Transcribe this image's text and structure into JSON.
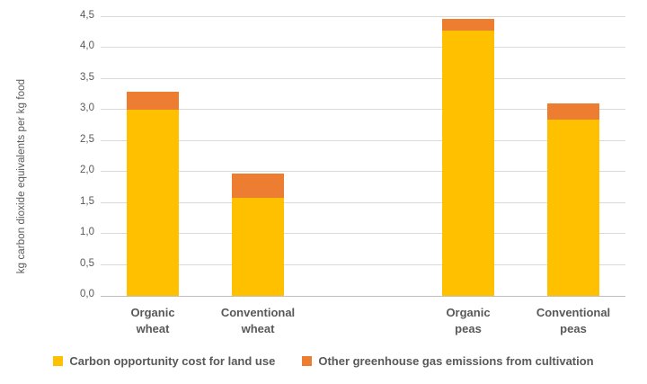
{
  "chart_data": {
    "type": "bar",
    "stacked": true,
    "title": "",
    "xlabel": "",
    "ylabel": "kg carbon dioxide equivalents per kg food",
    "categories": [
      "Organic\nwheat",
      "Conventional\nwheat",
      "Organic\npeas",
      "Conventional\npeas"
    ],
    "series": [
      {
        "name": "Carbon opportunity cost for land use",
        "color": "#FFC000",
        "values": [
          3.0,
          1.58,
          4.28,
          2.85
        ]
      },
      {
        "name": "Other greenhouse gas emissions from cultivation",
        "color": "#ED7D31",
        "values": [
          0.3,
          0.4,
          0.19,
          0.25
        ]
      }
    ],
    "totals": [
      3.3,
      1.98,
      4.47,
      3.1
    ],
    "ylim": [
      0,
      4.5
    ],
    "ytick_step": 0.5,
    "ytick_labels": [
      "0,0",
      "0,5",
      "1,0",
      "1,5",
      "2,0",
      "2,5",
      "3,0",
      "3,5",
      "4,0",
      "4,5"
    ],
    "grid": true,
    "legend_position": "bottom",
    "layout_hints": {
      "slot_count": 5,
      "slots": [
        0,
        1,
        3,
        4
      ],
      "empty_slot_between_groups": 2
    }
  },
  "colors": {
    "series_yellow": "#FFC000",
    "series_orange": "#ED7D31",
    "gridline": "#D9D9D9",
    "axis_line": "#BFBFBF",
    "text": "#595959"
  }
}
